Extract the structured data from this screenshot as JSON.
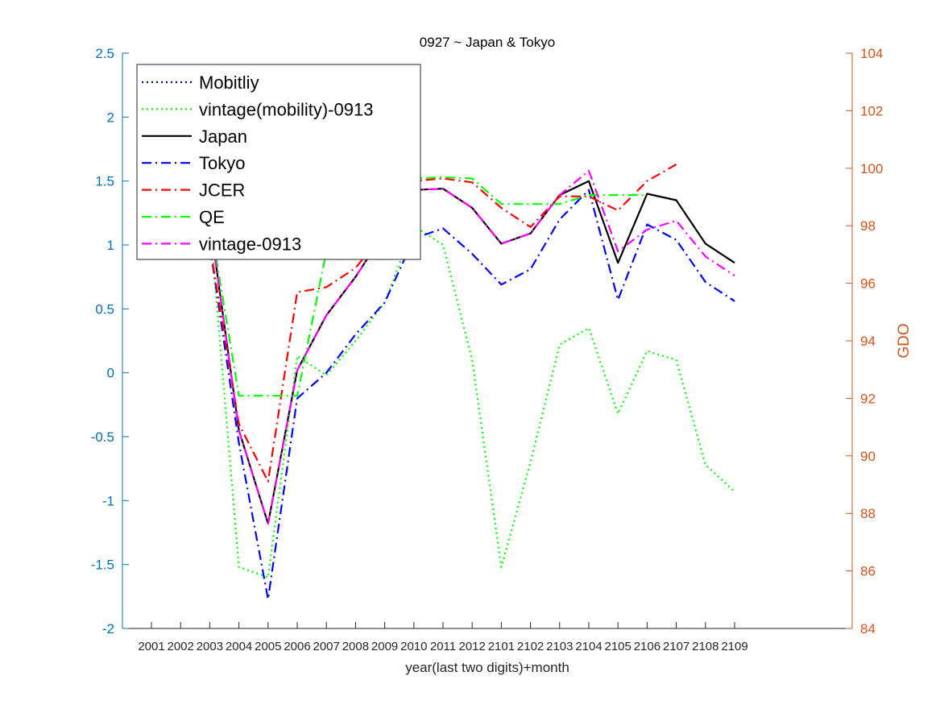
{
  "chart_data": {
    "type": "line",
    "title": "0927 ~ Japan & Tokyo",
    "xlabel": "year(last two digits)+month",
    "ylabel_left": "",
    "ylabel_right": "GDO",
    "categories": [
      "2001",
      "2002",
      "2003",
      "2004",
      "2005",
      "2006",
      "2007",
      "2008",
      "2009",
      "2010",
      "2011",
      "2012",
      "2101",
      "2102",
      "2103",
      "2104",
      "2105",
      "2106",
      "2107",
      "2108",
      "2109"
    ],
    "ylim_left": [
      -2,
      2.5
    ],
    "yticks_left": [
      "2.5",
      "2",
      "1.5",
      "1",
      "0.5",
      "0",
      "-0.5",
      "-1",
      "-1.5",
      "-2"
    ],
    "ylim_right": [
      84,
      104
    ],
    "yticks_right": [
      "104",
      "102",
      "100",
      "98",
      "96",
      "94",
      "92",
      "90",
      "88",
      "86",
      "84"
    ],
    "grid": false,
    "legend_position": "top-left",
    "series": [
      {
        "name": "Mobitliy",
        "axis": "left",
        "color": "#00008b",
        "style": "dotted",
        "values": [
          null,
          null,
          null,
          null,
          null,
          null,
          null,
          null,
          null,
          null,
          null,
          null,
          null,
          null,
          null,
          null,
          null,
          null,
          null,
          null,
          null
        ]
      },
      {
        "name": "vintage(mobility)-0913",
        "axis": "left",
        "color": "#00ff00",
        "style": "dotted",
        "values": [
          null,
          null,
          1.2,
          -1.52,
          -1.6,
          0.13,
          -0.02,
          0.25,
          0.55,
          1.15,
          1.0,
          0.1,
          -1.52,
          -0.7,
          0.22,
          0.35,
          -0.32,
          0.17,
          0.1,
          -0.72,
          -0.93
        ]
      },
      {
        "name": "Japan",
        "axis": "left",
        "color": "#000000",
        "style": "solid",
        "values": [
          null,
          null,
          1.2,
          -0.45,
          -1.18,
          0.02,
          0.45,
          0.75,
          1.1,
          1.43,
          1.44,
          1.29,
          1.01,
          1.09,
          1.39,
          1.5,
          0.86,
          1.4,
          1.35,
          1.01,
          0.86
        ]
      },
      {
        "name": "Tokyo",
        "axis": "left",
        "color": "#0000ff",
        "style": "dashdot",
        "values": [
          null,
          null,
          1.0,
          -0.55,
          -1.77,
          -0.2,
          0.0,
          0.3,
          0.55,
          1.05,
          1.13,
          0.93,
          0.69,
          0.81,
          1.2,
          1.43,
          0.57,
          1.16,
          1.04,
          0.71,
          0.56
        ]
      },
      {
        "name": "JCER",
        "axis": "left",
        "color": "#ff0000",
        "style": "dashdot",
        "values": [
          null,
          null,
          1.0,
          -0.4,
          -0.85,
          0.63,
          0.67,
          0.82,
          1.1,
          1.5,
          1.52,
          1.49,
          1.29,
          1.14,
          1.38,
          1.38,
          1.27,
          1.5,
          1.63,
          null,
          null
        ]
      },
      {
        "name": "QE",
        "axis": "left",
        "color": "#00ff00",
        "style": "dashdot",
        "values": [
          null,
          null,
          1.2,
          -0.18,
          -0.18,
          -0.18,
          0.95,
          0.95,
          1.1,
          1.52,
          1.53,
          1.52,
          1.32,
          1.32,
          1.32,
          1.39,
          1.39,
          1.39,
          null,
          null,
          null
        ]
      },
      {
        "name": "vintage-0913",
        "axis": "left",
        "color": "#ff00ff",
        "style": "dashdot",
        "values": [
          null,
          null,
          1.2,
          -0.45,
          -1.18,
          0.02,
          0.45,
          0.75,
          1.1,
          1.43,
          1.44,
          1.29,
          1.01,
          1.09,
          1.39,
          1.58,
          0.95,
          1.12,
          1.19,
          0.91,
          0.76
        ]
      }
    ]
  }
}
